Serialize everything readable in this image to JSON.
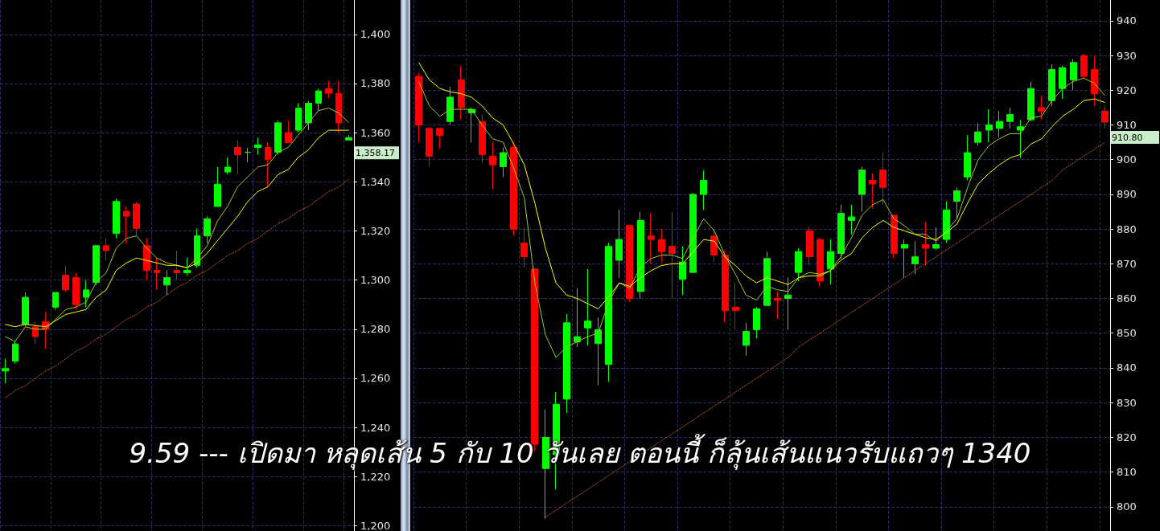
{
  "chart_data": [
    {
      "type": "candlestick",
      "categories": [
        null,
        null,
        null,
        null,
        null,
        null,
        null,
        null,
        null,
        null,
        null,
        null,
        null,
        null,
        null,
        null,
        null,
        null,
        null,
        null,
        null,
        null,
        null,
        null,
        null,
        null,
        null,
        null,
        null,
        null,
        null,
        null,
        null,
        null,
        null
      ],
      "ohlc": [
        [
          1263,
          1268,
          1258,
          1264
        ],
        [
          1267,
          1275,
          1266,
          1274
        ],
        [
          1282,
          1295,
          1281,
          1293
        ],
        [
          1281,
          1283,
          1274,
          1277
        ],
        [
          1283,
          1287,
          1272,
          1280
        ],
        [
          1289,
          1295,
          1288,
          1295
        ],
        [
          1302,
          1306,
          1295,
          1296
        ],
        [
          1301,
          1303,
          1288,
          1290
        ],
        [
          1293,
          1300,
          1289,
          1296
        ],
        [
          1299,
          1314,
          1298,
          1314
        ],
        [
          1314,
          1317,
          1308,
          1312
        ],
        [
          1319,
          1333,
          1317,
          1332
        ],
        [
          1328,
          1330,
          1315,
          1326
        ],
        [
          1331,
          1332,
          1318,
          1321
        ],
        [
          1314,
          1317,
          1300,
          1304
        ],
        [
          1304,
          1309,
          1296,
          1303
        ],
        [
          1298,
          1304,
          1294,
          1301
        ],
        [
          1304,
          1312,
          1300,
          1303
        ],
        [
          1303,
          1309,
          1302,
          1304
        ],
        [
          1306,
          1321,
          1305,
          1318
        ],
        [
          1318,
          1326,
          1315,
          1325
        ],
        [
          1330,
          1346,
          1330,
          1339
        ],
        [
          1344,
          1350,
          1343,
          1346
        ],
        [
          1354,
          1357,
          1343,
          1351
        ],
        [
          1352,
          1354,
          1348,
          1352
        ],
        [
          1354,
          1358,
          1351,
          1355
        ],
        [
          1354,
          1356,
          1338,
          1349
        ],
        [
          1352,
          1365,
          1351,
          1364
        ],
        [
          1360,
          1365,
          1356,
          1356
        ],
        [
          1361,
          1372,
          1360,
          1370
        ],
        [
          1364,
          1373,
          1361,
          1372
        ],
        [
          1372,
          1378,
          1369,
          1377
        ],
        [
          1378,
          1381,
          1374,
          1376
        ],
        [
          1376,
          1381,
          1360,
          1364
        ],
        [
          1357,
          1359,
          1357,
          1358
        ]
      ],
      "colors": [
        "#00ff00",
        "#00ff00",
        "#00ff00",
        "#ff0000",
        "#ff0000",
        "#00ff00",
        "#ff0000",
        "#ff0000",
        "#00ff00",
        "#00ff00",
        "#ff0000",
        "#00ff00",
        "#ff0000",
        "#ff0000",
        "#ff0000",
        "#ff0000",
        "#00ff00",
        "#ff0000",
        "#00ff00",
        "#00ff00",
        "#00ff00",
        "#00ff00",
        "#00ff00",
        "#ff0000",
        "#00ff00",
        "#00ff00",
        "#ff0000",
        "#00ff00",
        "#ff0000",
        "#00ff00",
        "#00ff00",
        "#00ff00",
        "#ff0000",
        "#ff0000",
        "#00ff00"
      ],
      "series": [
        {
          "type": "line",
          "color": "#9acd32",
          "line_style": "solid",
          "values": [
            1277,
            1275,
            1281,
            1280,
            1280,
            1284,
            1288,
            1289,
            1291,
            1299,
            1303,
            1313,
            1317,
            1318,
            1313,
            1309,
            1307,
            1306,
            1305,
            1309,
            1314,
            1324,
            1330,
            1338,
            1342,
            1346,
            1347,
            1352,
            1354,
            1359,
            1364,
            1369,
            1370,
            1368,
            1364
          ]
        },
        {
          "type": "line",
          "color": "#ffff00",
          "line_style": "solid",
          "values": [
            1282,
            1281,
            1282,
            1281.5,
            1281,
            1283.5,
            1286,
            1287,
            1288,
            1293,
            1296,
            1304,
            1307,
            1309,
            1308,
            1307,
            1306,
            1306,
            1305,
            1307,
            1311,
            1316,
            1321,
            1326,
            1332,
            1336,
            1338,
            1343,
            1345,
            1350,
            1353,
            1358,
            1361,
            1361,
            1361
          ]
        },
        {
          "type": "line",
          "color": "#ff8040",
          "line_style": "dotted",
          "values": [
            1252,
            1255,
            1257,
            1260,
            1263,
            1265,
            1268,
            1271,
            1273,
            1276,
            1278,
            1281,
            1284,
            1286,
            1289,
            1291,
            1294,
            1297,
            1299,
            1302,
            1304,
            1307,
            1310,
            1312,
            1315,
            1317,
            1320,
            1323,
            1325,
            1328,
            1330,
            1333,
            1336,
            1338,
            1341
          ]
        }
      ],
      "ylim": [
        1198,
        1414
      ],
      "yticks": [
        {
          "value": 1200,
          "label": "1,200"
        },
        {
          "value": 1220,
          "label": "1,220"
        },
        {
          "value": 1240,
          "label": "1,240"
        },
        {
          "value": 1260,
          "label": "1,260"
        },
        {
          "value": 1280,
          "label": "1,280"
        },
        {
          "value": 1300,
          "label": "1,300"
        },
        {
          "value": 1320,
          "label": "1,320"
        },
        {
          "value": 1340,
          "label": "1,340"
        },
        {
          "value": 1360,
          "label": "1,360"
        },
        {
          "value": 1380,
          "label": "1,380"
        },
        {
          "value": 1400,
          "label": "1,400"
        }
      ],
      "grid": true,
      "tick_labels": "y",
      "marker": "none",
      "annotations": [
        "9.59 --- เปิดมา หลุดเส้น 5 กับ 10 วันเลย ตอนนี้ ก็ลุ้นเส้นแนวรับแถวๆ 1340",
        "1,358.17"
      ]
    },
    {
      "type": "candlestick",
      "categories": [
        null,
        null,
        null,
        null,
        null,
        null,
        null,
        null,
        null,
        null,
        null,
        null,
        null,
        null,
        null,
        null,
        null,
        null,
        null,
        null,
        null,
        null,
        null,
        null,
        null,
        null,
        null,
        null,
        null,
        null,
        null,
        null,
        null,
        null,
        null,
        null,
        null,
        null,
        null,
        null,
        null,
        null,
        null,
        null,
        null,
        null,
        null,
        null,
        null,
        null,
        null,
        null,
        null,
        null,
        null,
        null,
        null,
        null,
        null,
        null,
        null,
        null,
        null,
        null,
        null,
        null
      ],
      "ohlc": [
        [
          924,
          925,
          905,
          910
        ],
        [
          909,
          909,
          898,
          901
        ],
        [
          909,
          909,
          903,
          907
        ],
        [
          911,
          921,
          910,
          918
        ],
        [
          923,
          927,
          911.5,
          915
        ],
        [
          913.5,
          915,
          905,
          914.5
        ],
        [
          911,
          913,
          899,
          901.5
        ],
        [
          901,
          905,
          891.5,
          898.5
        ],
        [
          898,
          903.5,
          895,
          902
        ],
        [
          903.5,
          905,
          878,
          880
        ],
        [
          876,
          880.5,
          869,
          872
        ],
        [
          868.5,
          868.5,
          816,
          818
        ],
        [
          811,
          828,
          796.5,
          820
        ],
        [
          815,
          833,
          805,
          829.5
        ],
        [
          831,
          855.5,
          827,
          853
        ],
        [
          847.5,
          863,
          846,
          849
        ],
        [
          851.5,
          868.5,
          846.5,
          853.5
        ],
        [
          847,
          854.5,
          835,
          851
        ],
        [
          841,
          876,
          836,
          875
        ],
        [
          871,
          885.5,
          866,
          877
        ],
        [
          881,
          881,
          859,
          860
        ],
        [
          862,
          885,
          860,
          882.5
        ],
        [
          878,
          884.5,
          870,
          877
        ],
        [
          877,
          880,
          870.5,
          873.5
        ],
        [
          875,
          885,
          860,
          873
        ],
        [
          865.5,
          875,
          861,
          870.5
        ],
        [
          867.5,
          890.5,
          867.5,
          890
        ],
        [
          890,
          897,
          885.5,
          894
        ],
        [
          878,
          880,
          870.5,
          872.5
        ],
        [
          872.5,
          874,
          853,
          856.5
        ],
        [
          857.5,
          864.5,
          851,
          856.5
        ],
        [
          846.5,
          853,
          843.5,
          850.5
        ],
        [
          851,
          857.5,
          848.5,
          857
        ],
        [
          858,
          873.5,
          858,
          871.5
        ],
        [
          860,
          862,
          854,
          859.5
        ],
        [
          860,
          866,
          851,
          861
        ],
        [
          867.5,
          874.5,
          865,
          873.5
        ],
        [
          879.5,
          880.5,
          869.5,
          872
        ],
        [
          877,
          877.5,
          863.5,
          865
        ],
        [
          868.5,
          877,
          864,
          873.5
        ],
        [
          873,
          887,
          871.5,
          884.5
        ],
        [
          882.5,
          887,
          878.5,
          883.5
        ],
        [
          890,
          898,
          885,
          897
        ],
        [
          894,
          896,
          886,
          893
        ],
        [
          897,
          902,
          887,
          892
        ],
        [
          884,
          884,
          871.5,
          873
        ],
        [
          874.5,
          877,
          866,
          875.5
        ],
        [
          870,
          876.5,
          867,
          872
        ],
        [
          875.5,
          882,
          869.5,
          874.5
        ],
        [
          874.5,
          880.5,
          874,
          875.5
        ],
        [
          877,
          888,
          876,
          885.5
        ],
        [
          888,
          892,
          883,
          891
        ],
        [
          895,
          907,
          894,
          902
        ],
        [
          905,
          910.5,
          904,
          908
        ],
        [
          908.5,
          914.5,
          905,
          910
        ],
        [
          909,
          914,
          906.5,
          911
        ],
        [
          911,
          915,
          909,
          913
        ],
        [
          908.5,
          911.5,
          900.5,
          909.5
        ],
        [
          911.5,
          922.5,
          911,
          920.5
        ],
        [
          915,
          918.5,
          911.5,
          914
        ],
        [
          917,
          927.5,
          915.5,
          926
        ],
        [
          920.5,
          927,
          917.5,
          926.5
        ],
        [
          923,
          929,
          920,
          928
        ],
        [
          930,
          930.5,
          923.5,
          924
        ],
        [
          926,
          930,
          915.5,
          919
        ],
        [
          914,
          915.5,
          909,
          910.8
        ]
      ],
      "colors": [
        "#ff0000",
        "#ff0000",
        "#ff0000",
        "#00ff00",
        "#ff0000",
        "#00ff00",
        "#ff0000",
        "#ff0000",
        "#00ff00",
        "#ff0000",
        "#ff0000",
        "#ff0000",
        "#00ff00",
        "#00ff00",
        "#00ff00",
        "#00ff00",
        "#00ff00",
        "#00ff00",
        "#00ff00",
        "#00ff00",
        "#ff0000",
        "#00ff00",
        "#ff0000",
        "#ff0000",
        "#ff0000",
        "#00ff00",
        "#00ff00",
        "#00ff00",
        "#ff0000",
        "#ff0000",
        "#ff0000",
        "#00ff00",
        "#00ff00",
        "#00ff00",
        "#ff0000",
        "#00ff00",
        "#00ff00",
        "#ff0000",
        "#ff0000",
        "#00ff00",
        "#00ff00",
        "#00ff00",
        "#00ff00",
        "#ff0000",
        "#ff0000",
        "#ff0000",
        "#00ff00",
        "#00ff00",
        "#ff0000",
        "#00ff00",
        "#00ff00",
        "#00ff00",
        "#00ff00",
        "#00ff00",
        "#00ff00",
        "#00ff00",
        "#00ff00",
        "#00ff00",
        "#00ff00",
        "#ff0000",
        "#00ff00",
        "#00ff00",
        "#00ff00",
        "#ff0000",
        "#ff0000",
        "#ff0000"
      ],
      "series": [
        {
          "type": "line",
          "color": "#9acd32",
          "line_style": "solid",
          "values": [
            922.5,
            915.5,
            912.5,
            914.5,
            914.5,
            914.5,
            910,
            906,
            905,
            897.5,
            889,
            864.5,
            849.5,
            843,
            846,
            847.5,
            849,
            850,
            859,
            864.5,
            863,
            869,
            871.5,
            872.5,
            872.5,
            871.5,
            877.5,
            883,
            879.5,
            872.5,
            867,
            861,
            859.5,
            863.5,
            862.5,
            862,
            866,
            867.5,
            867,
            868,
            872,
            877.5,
            884,
            887,
            888.5,
            883,
            881,
            878.5,
            878.5,
            876.5,
            879.5,
            883,
            892,
            900,
            904,
            906,
            907.5,
            907.5,
            912,
            912.5,
            917,
            920.5,
            922.5,
            923.5,
            922,
            918.5
          ]
        },
        {
          "type": "line",
          "color": "#ffff00",
          "line_style": "solid",
          "values": [
            928,
            923,
            920.5,
            919.5,
            919,
            918,
            915.5,
            912,
            910,
            904.5,
            898.5,
            887.5,
            874.5,
            864.5,
            861,
            860,
            858.5,
            857,
            860.5,
            864.5,
            863.5,
            866,
            868,
            869.5,
            870,
            870,
            873.5,
            877,
            876.5,
            872,
            869.5,
            866.5,
            864.5,
            866,
            865,
            864,
            866,
            866.5,
            866.5,
            868,
            871,
            873,
            877.5,
            880.5,
            882.5,
            880.5,
            879.5,
            878.5,
            877.5,
            877,
            879,
            881.5,
            887.5,
            893,
            896,
            898.5,
            900.5,
            901.5,
            904.5,
            906,
            909.5,
            912.5,
            914.5,
            917,
            917.5,
            916.5
          ]
        },
        {
          "type": "line",
          "color": "#ff8040",
          "line_style": "dotted",
          "values": [
            null,
            null,
            null,
            null,
            null,
            null,
            null,
            null,
            null,
            null,
            null,
            null,
            797,
            799,
            801,
            803,
            805,
            807,
            809,
            811,
            813,
            815,
            817,
            819,
            821,
            823,
            825,
            827,
            829,
            831,
            833,
            835,
            837,
            839,
            841,
            843,
            846,
            848,
            850,
            852,
            854,
            856,
            858,
            860,
            862,
            864,
            866,
            868,
            870,
            872,
            874,
            876,
            878,
            880,
            882,
            884,
            886,
            888,
            890,
            892,
            894,
            897,
            899,
            901,
            903,
            905
          ]
        }
      ],
      "ylim": [
        793,
        946
      ],
      "yticks": [
        800,
        810,
        820,
        830,
        840,
        850,
        860,
        870,
        880,
        890,
        900,
        910,
        920,
        930,
        940
      ],
      "grid": true,
      "tick_labels": "y",
      "marker": "none",
      "annotations": [
        "910.80"
      ]
    }
  ]
}
